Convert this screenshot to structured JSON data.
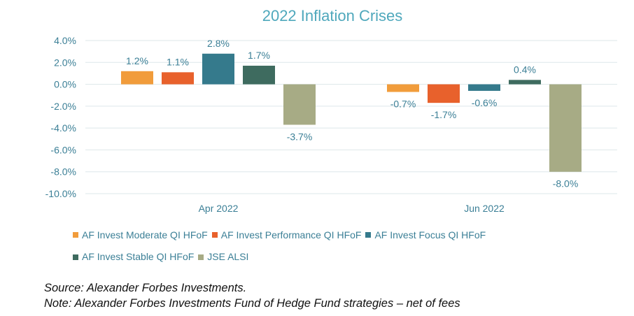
{
  "chart_data": {
    "type": "bar",
    "title": "2022 Inflation Crises",
    "categories": [
      "Apr 2022",
      "Jun 2022"
    ],
    "series": [
      {
        "name": "AF Invest Moderate QI HFoF",
        "color": "#f19c3b",
        "values": [
          1.2,
          -0.7
        ],
        "labels": [
          "1.2%",
          "-0.7%"
        ]
      },
      {
        "name": "AF Invest Performance QI HFoF",
        "color": "#e8612c",
        "values": [
          1.1,
          -1.7
        ],
        "labels": [
          "1.1%",
          "-1.7%"
        ]
      },
      {
        "name": "AF Invest Focus QI HFoF",
        "color": "#357a8c",
        "values": [
          2.8,
          -0.6
        ],
        "labels": [
          "2.8%",
          "-0.6%"
        ]
      },
      {
        "name": "AF Invest Stable QI HFoF",
        "color": "#3e6b5f",
        "values": [
          1.7,
          0.4
        ],
        "labels": [
          "1.7%",
          "0.4%"
        ]
      },
      {
        "name": "JSE ALSI",
        "color": "#a7ab85",
        "values": [
          -3.7,
          -8.0
        ],
        "labels": [
          "-3.7%",
          "-8.0%"
        ]
      }
    ],
    "ylim": [
      -10,
      4
    ],
    "yticks": [
      4,
      2,
      0,
      -2,
      -4,
      -6,
      -8,
      -10
    ],
    "ytick_labels": [
      "4.0%",
      "2.0%",
      "0.0%",
      "-2.0%",
      "-4.0%",
      "-6.0%",
      "-8.0%",
      "-10.0%"
    ],
    "grid": true,
    "legend": "bottom"
  },
  "notes": {
    "source": "Source: Alexander Forbes Investments.",
    "note": "Note: Alexander Forbes Investments Fund of Hedge Fund strategies – net of fees"
  }
}
